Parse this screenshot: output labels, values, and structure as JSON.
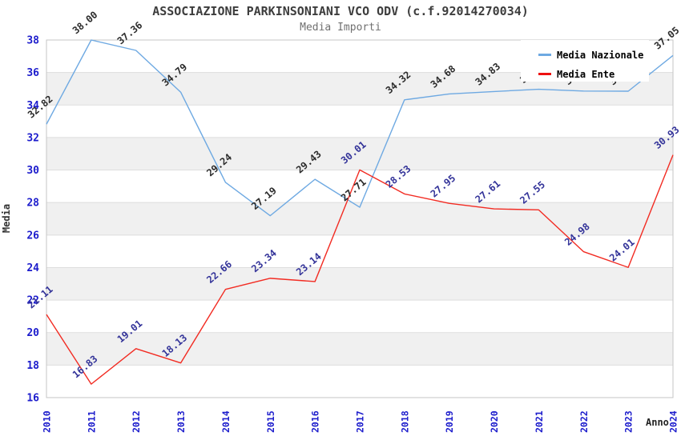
{
  "chart_data": {
    "type": "line",
    "title": "ASSOCIAZIONE PARKINSONIANI VCO ODV (c.f.92014270034)",
    "subtitle": "Media Importi",
    "xlabel": "Anno",
    "ylabel": "Media",
    "categories": [
      2010,
      2011,
      2012,
      2013,
      2014,
      2015,
      2016,
      2017,
      2018,
      2019,
      2020,
      2021,
      2022,
      2023,
      2024
    ],
    "series": [
      {
        "name": "Media Nazionale",
        "color": "#6ea9e2",
        "label_color": "#2b2b2b",
        "values": [
          32.82,
          38.0,
          37.36,
          34.79,
          29.24,
          27.19,
          29.43,
          27.71,
          34.32,
          34.68,
          34.83,
          34.97,
          34.86,
          34.85,
          37.05
        ],
        "note": "2021-2023 point labels are occluded by the legend box; those three values are estimated from the line position"
      },
      {
        "name": "Media Ente",
        "color": "#f22b22",
        "label_color": "#333399",
        "values": [
          21.11,
          16.83,
          19.01,
          18.13,
          22.66,
          23.34,
          23.14,
          30.01,
          28.53,
          27.95,
          27.61,
          27.55,
          24.98,
          24.01,
          30.93
        ]
      }
    ],
    "ylim": [
      16,
      38
    ],
    "ytick_step": 2,
    "grid": "horizontal gridlines with alternating gray bands",
    "band_color": "#f0f0f0",
    "gridline_color": "#dddddd",
    "plot_border_color": "#c6c6c6",
    "axis_tick_color": "#1c1ccc",
    "legend_position": "top-right inside plot",
    "data_label_rotation_deg": -40,
    "x_tick_rotation_deg": -90
  }
}
